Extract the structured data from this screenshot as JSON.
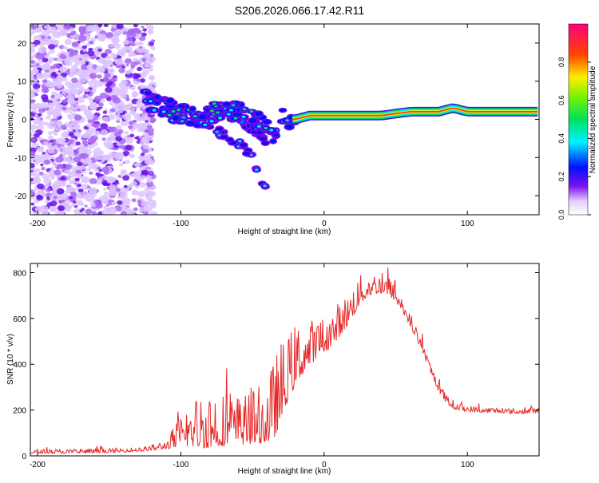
{
  "title": "S206.2026.066.17.42.R11",
  "chart_data": [
    {
      "type": "heatmap",
      "title": "S206.2026.066.17.42.R11",
      "xlabel": "Height of straight line (km)",
      "ylabel": "Frequency (Hz)",
      "xlim": [
        -205,
        150
      ],
      "ylim": [
        -25,
        25
      ],
      "xticks": [
        -200,
        -100,
        0,
        100
      ],
      "xtick_labels": [
        "-200",
        "-100",
        "0",
        "100"
      ],
      "yticks": [
        -20,
        -10,
        0,
        10,
        20
      ],
      "ytick_labels": [
        "-20",
        "-10",
        "0",
        "10",
        "20"
      ],
      "colorbar": {
        "label": "Normalized spectral amplitude",
        "range": [
          0,
          1
        ],
        "ticks": [
          0.0,
          0.2,
          0.4,
          0.6,
          0.8
        ],
        "tick_labels": [
          "0.0",
          "0.2",
          "0.4",
          "0.6",
          "0.8"
        ]
      },
      "ridge": {
        "x": [
          -125,
          -110,
          -100,
          -90,
          -80,
          -70,
          -60,
          -50,
          -40,
          -35,
          -30,
          -25,
          -20,
          -10,
          0,
          10,
          20,
          40,
          60,
          80,
          90,
          100,
          120,
          150
        ],
        "freq": [
          5,
          3,
          1,
          0.5,
          1,
          3,
          2,
          0,
          -2,
          -4,
          0,
          0,
          0,
          1,
          1,
          1,
          1,
          1,
          2,
          2,
          3,
          2,
          2,
          2
        ]
      },
      "branches": [
        {
          "x": [
            -100,
            -80,
            -60,
            -50,
            -45,
            -40
          ],
          "freq": [
            1,
            -2,
            -6,
            -10,
            -14,
            -19
          ]
        },
        {
          "x": [
            -70,
            -55,
            -45,
            -40
          ],
          "freq": [
            3,
            -1,
            -4,
            -7
          ]
        }
      ],
      "noise_region": {
        "x_from": -205,
        "x_to": -125
      }
    },
    {
      "type": "line",
      "xlabel": "Height of straight line (km)",
      "ylabel": "SNR (10 * v/v)",
      "xlim": [
        -205,
        150
      ],
      "ylim": [
        0,
        840
      ],
      "xticks": [
        -200,
        -100,
        0,
        100
      ],
      "xtick_labels": [
        "-200",
        "-100",
        "0",
        "100"
      ],
      "yticks": [
        0,
        200,
        400,
        600,
        800
      ],
      "ytick_labels": [
        "0",
        "200",
        "400",
        "600",
        "800"
      ],
      "line_color": "#e52727",
      "envelope": {
        "x": [
          -205,
          -180,
          -150,
          -125,
          -110,
          -105,
          -100,
          -95,
          -90,
          -85,
          -80,
          -75,
          -70,
          -65,
          -60,
          -55,
          -50,
          -45,
          -40,
          -35,
          -30,
          -25,
          -20,
          -15,
          -10,
          -5,
          0,
          5,
          10,
          15,
          20,
          25,
          30,
          35,
          40,
          45,
          50,
          55,
          60,
          65,
          70,
          75,
          80,
          85,
          90,
          95,
          100,
          110,
          120,
          130,
          140,
          150
        ],
        "base": [
          15,
          15,
          18,
          25,
          40,
          55,
          70,
          80,
          90,
          95,
          100,
          100,
          95,
          95,
          100,
          100,
          105,
          110,
          120,
          150,
          230,
          310,
          370,
          410,
          440,
          460,
          490,
          510,
          550,
          590,
          640,
          690,
          720,
          730,
          730,
          720,
          690,
          640,
          580,
          510,
          440,
          360,
          290,
          240,
          215,
          205,
          200,
          195,
          195,
          190,
          190,
          195
        ],
        "amplitude": [
          12,
          12,
          12,
          12,
          25,
          60,
          90,
          110,
          140,
          170,
          190,
          170,
          150,
          140,
          140,
          145,
          150,
          160,
          180,
          220,
          220,
          180,
          170,
          150,
          130,
          110,
          100,
          100,
          100,
          90,
          90,
          80,
          70,
          60,
          60,
          55,
          50,
          40,
          40,
          35,
          30,
          30,
          30,
          25,
          25,
          20,
          18,
          15,
          15,
          15,
          15,
          15
        ]
      }
    }
  ]
}
